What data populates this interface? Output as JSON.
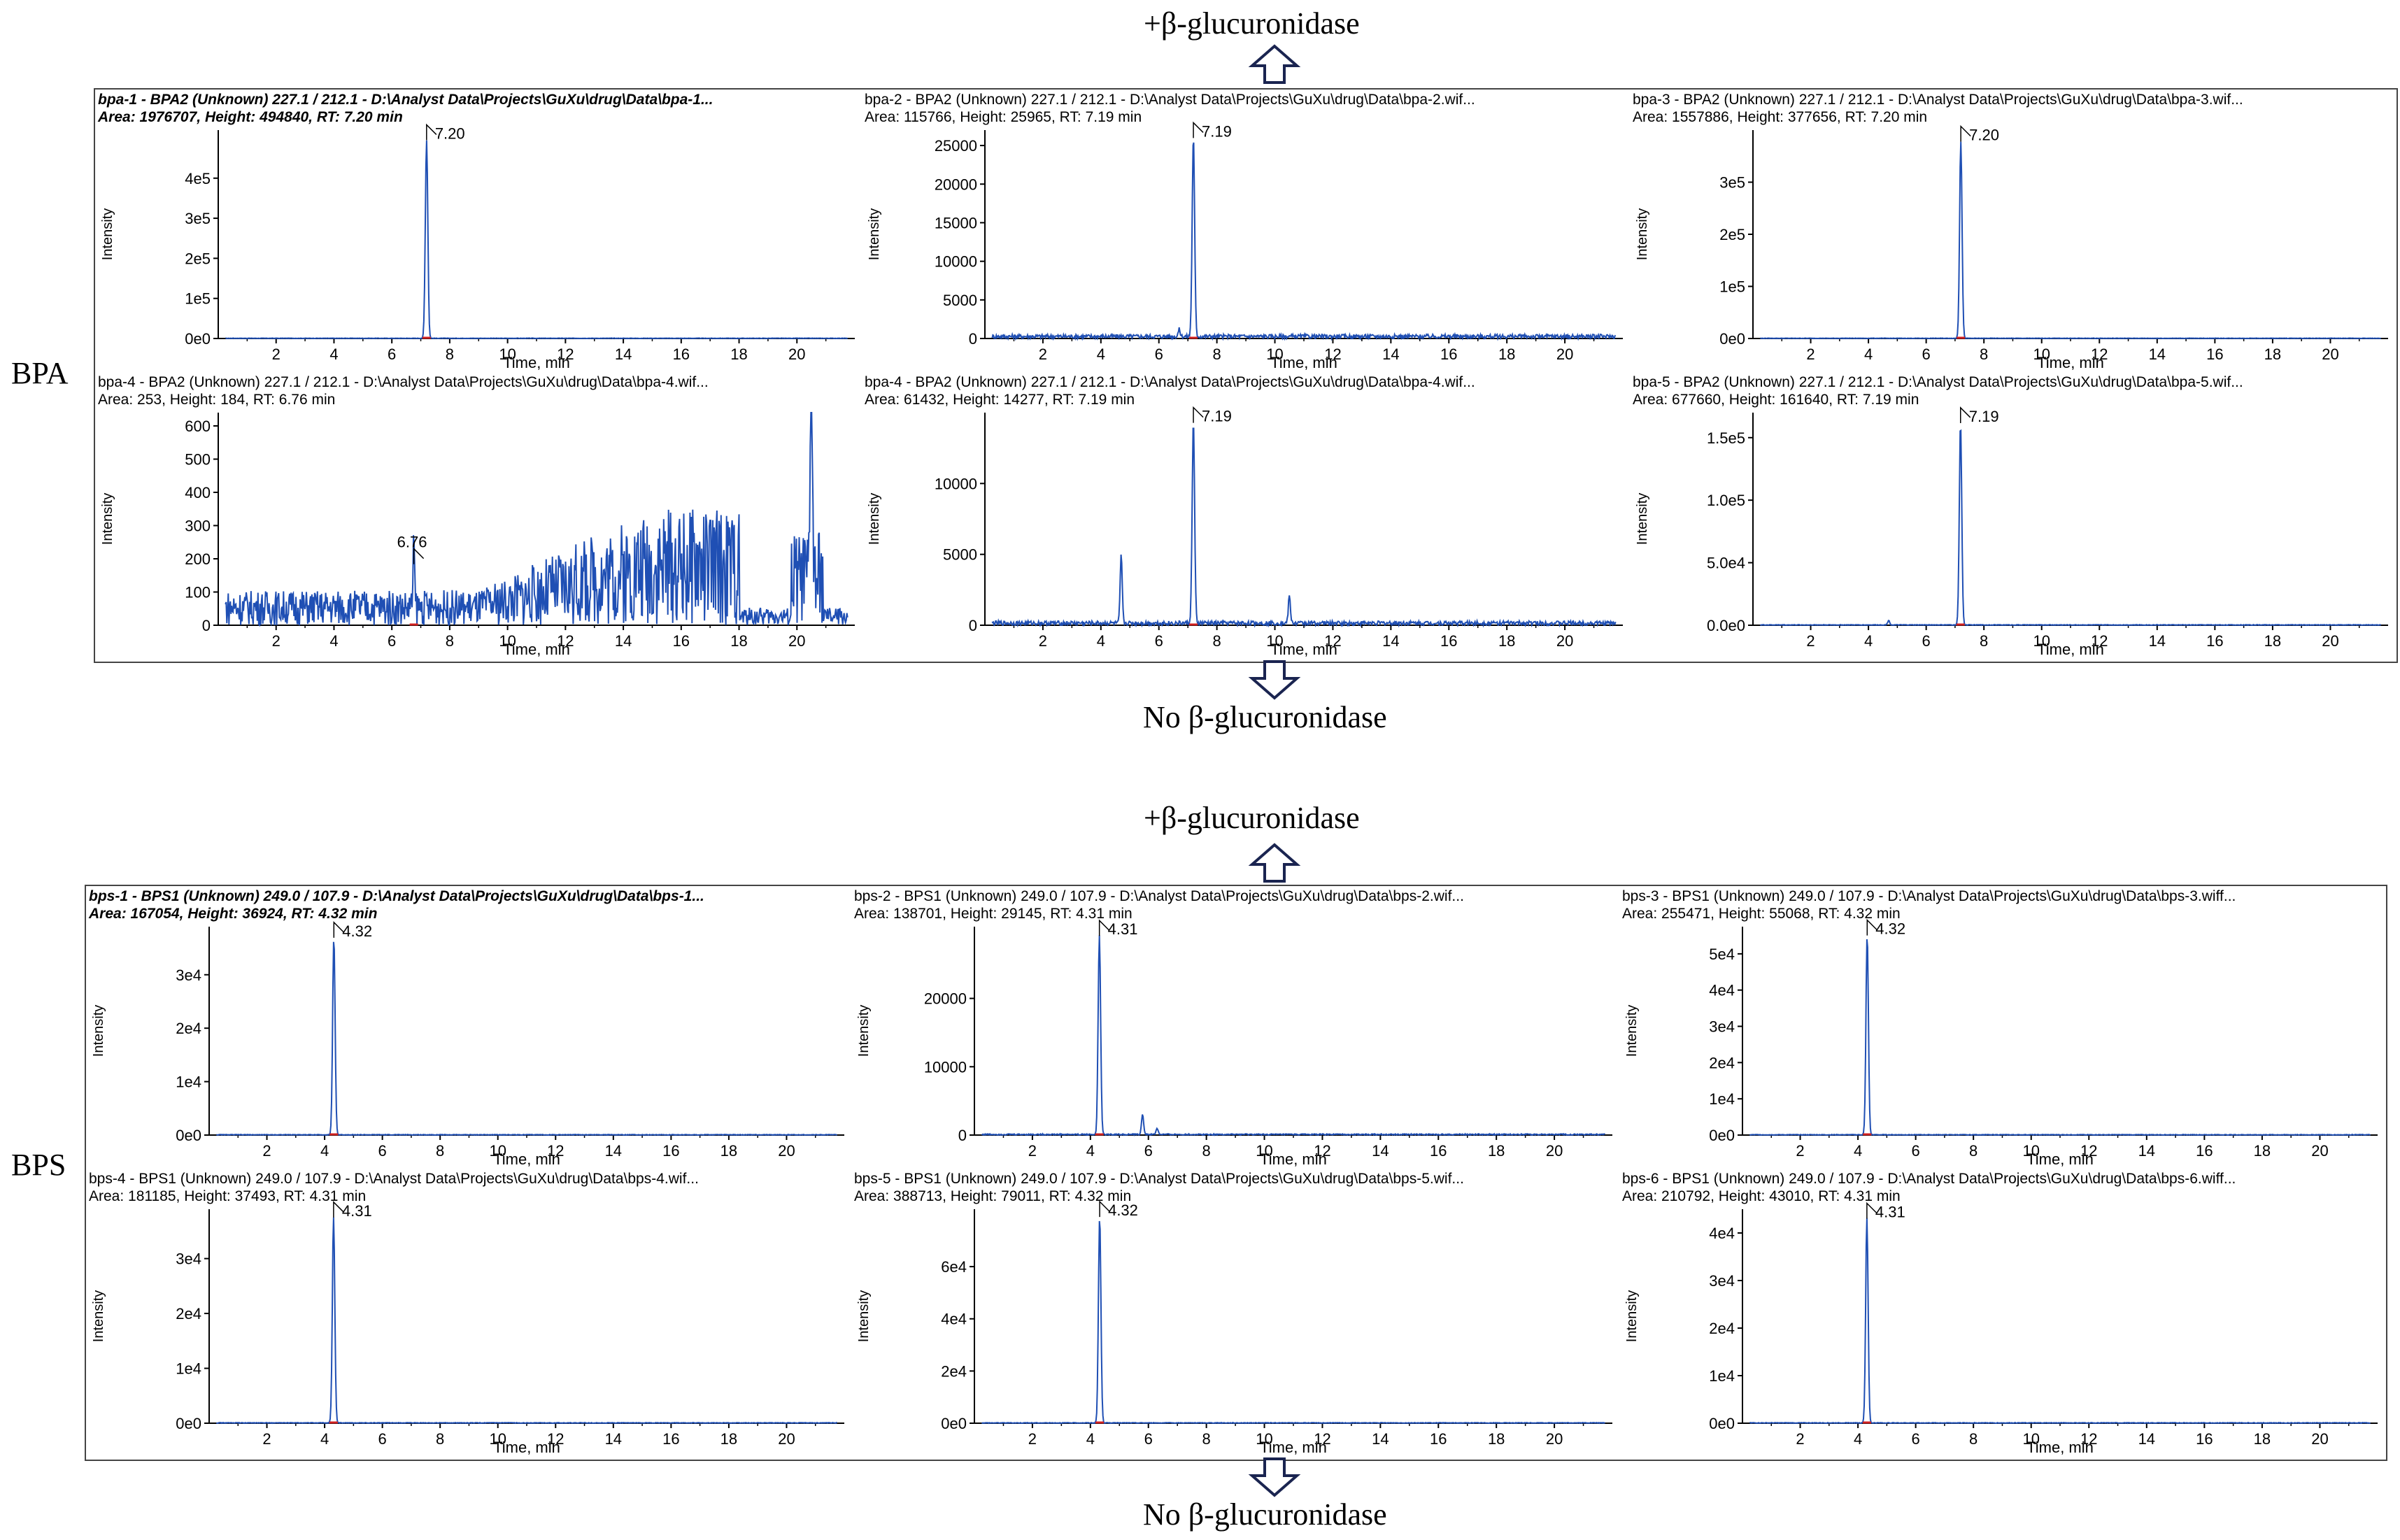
{
  "labels": {
    "plus_enzyme_top": "+β-glucuronidase",
    "no_enzyme_top": "No β-glucuronidase",
    "plus_enzyme_bottom": "+β-glucuronidase",
    "no_enzyme_bottom": "No β-glucuronidase",
    "bpa": "BPA",
    "bps": "BPS"
  },
  "colors": {
    "trace": "#1f4fb4",
    "axis": "#000000",
    "baseline_mark": "#d02020"
  },
  "chart_data": [
    {
      "type": "line",
      "group": "BPA",
      "title1": "bpa-1 - BPA2 (Unknown) 227.1 / 212.1 - D:\\Analyst Data\\Projects\\GuXu\\drug\\Data\\bpa-1...",
      "title2": "Area: 1976707, Height: 494840, RT: 7.20 min",
      "bold": true,
      "xlabel": "Time, min",
      "ylabel": "Intensity",
      "xlim": [
        0,
        22
      ],
      "ylim": [
        0,
        520000
      ],
      "xticks": [
        "2",
        "4",
        "6",
        "8",
        "10",
        "12",
        "14",
        "16",
        "18",
        "20"
      ],
      "yticks": [
        {
          "v": 0,
          "t": "0e0"
        },
        {
          "v": 100000,
          "t": "1e5"
        },
        {
          "v": 200000,
          "t": "2e5"
        },
        {
          "v": 300000,
          "t": "3e5"
        },
        {
          "v": 400000,
          "t": "4e5"
        }
      ],
      "peaks": [
        {
          "x": 7.2,
          "y": 494840,
          "w": 0.06
        }
      ],
      "noise": 0.002,
      "rt_label": "7.20",
      "rt_x": 7.2
    },
    {
      "type": "line",
      "group": "BPA",
      "title1": "bpa-2 - BPA2 (Unknown) 227.1 / 212.1 - D:\\Analyst Data\\Projects\\GuXu\\drug\\Data\\bpa-2.wif...",
      "title2": "Area: 115766, Height: 25965, RT: 7.19 min",
      "bold": false,
      "xlabel": "Time, min",
      "ylabel": "Intensity",
      "xlim": [
        0,
        22
      ],
      "ylim": [
        0,
        27000
      ],
      "xticks": [
        "2",
        "4",
        "6",
        "8",
        "10",
        "12",
        "14",
        "16",
        "18",
        "20"
      ],
      "yticks": [
        {
          "v": 0,
          "t": "0"
        },
        {
          "v": 5000,
          "t": "5000"
        },
        {
          "v": 10000,
          "t": "10000"
        },
        {
          "v": 15000,
          "t": "15000"
        },
        {
          "v": 20000,
          "t": "20000"
        },
        {
          "v": 25000,
          "t": "25000"
        }
      ],
      "peaks": [
        {
          "x": 7.19,
          "y": 25965,
          "w": 0.06
        },
        {
          "x": 6.7,
          "y": 900,
          "w": 0.05
        }
      ],
      "noise": 0.02,
      "rt_label": "7.19",
      "rt_x": 7.19
    },
    {
      "type": "line",
      "group": "BPA",
      "title1": "bpa-3 - BPA2 (Unknown) 227.1 / 212.1 - D:\\Analyst Data\\Projects\\GuXu\\drug\\Data\\bpa-3.wif...",
      "title2": "Area: 1557886, Height: 377656, RT: 7.20 min",
      "bold": false,
      "xlabel": "Time, min",
      "ylabel": "Intensity",
      "xlim": [
        0,
        22
      ],
      "ylim": [
        0,
        400000
      ],
      "xticks": [
        "2",
        "4",
        "6",
        "8",
        "10",
        "12",
        "14",
        "16",
        "18",
        "20"
      ],
      "yticks": [
        {
          "v": 0,
          "t": "0e0"
        },
        {
          "v": 100000,
          "t": "1e5"
        },
        {
          "v": 200000,
          "t": "2e5"
        },
        {
          "v": 300000,
          "t": "3e5"
        }
      ],
      "peaks": [
        {
          "x": 7.2,
          "y": 377656,
          "w": 0.06
        }
      ],
      "noise": 0.002,
      "rt_label": "7.20",
      "rt_x": 7.2
    },
    {
      "type": "line",
      "group": "BPA",
      "title1": "bpa-4 - BPA2 (Unknown) 227.1 / 212.1 - D:\\Analyst Data\\Projects\\GuXu\\drug\\Data\\bpa-4.wif...",
      "title2": "Area: 253, Height: 184, RT: 6.76 min",
      "bold": false,
      "xlabel": "Time, min",
      "ylabel": "Intensity",
      "xlim": [
        0,
        22
      ],
      "ylim": [
        0,
        640
      ],
      "xticks": [
        "2",
        "4",
        "6",
        "8",
        "10",
        "12",
        "14",
        "16",
        "18",
        "20"
      ],
      "yticks": [
        {
          "v": 0,
          "t": "0"
        },
        {
          "v": 100,
          "t": "100"
        },
        {
          "v": 200,
          "t": "200"
        },
        {
          "v": 300,
          "t": "300"
        },
        {
          "v": 400,
          "t": "400"
        },
        {
          "v": 500,
          "t": "500"
        },
        {
          "v": 600,
          "t": "600"
        }
      ],
      "peaks": [
        {
          "x": 20.5,
          "y": 620,
          "w": 0.05
        },
        {
          "x": 6.76,
          "y": 184,
          "w": 0.04
        }
      ],
      "noise": 0.55,
      "noise_ramp": true,
      "rt_label": "6.76",
      "rt_x": 6.76
    },
    {
      "type": "line",
      "group": "BPA",
      "title1": "bpa-4 - BPA2 (Unknown) 227.1 / 212.1 - D:\\Analyst Data\\Projects\\GuXu\\drug\\Data\\bpa-4.wif...",
      "title2": "Area: 61432, Height: 14277, RT: 7.19 min",
      "bold": false,
      "xlabel": "Time, min",
      "ylabel": "Intensity",
      "xlim": [
        0,
        22
      ],
      "ylim": [
        0,
        15000
      ],
      "xticks": [
        "2",
        "4",
        "6",
        "8",
        "10",
        "12",
        "14",
        "16",
        "18",
        "20"
      ],
      "yticks": [
        {
          "v": 0,
          "t": "0"
        },
        {
          "v": 5000,
          "t": "5000"
        },
        {
          "v": 10000,
          "t": "10000"
        }
      ],
      "peaks": [
        {
          "x": 7.19,
          "y": 14277,
          "w": 0.06
        },
        {
          "x": 4.7,
          "y": 4800,
          "w": 0.05
        },
        {
          "x": 10.5,
          "y": 1900,
          "w": 0.05
        }
      ],
      "noise": 0.02,
      "rt_label": "7.19",
      "rt_x": 7.19
    },
    {
      "type": "line",
      "group": "BPA",
      "title1": "bpa-5 - BPA2 (Unknown) 227.1 / 212.1 - D:\\Analyst Data\\Projects\\GuXu\\drug\\Data\\bpa-5.wif...",
      "title2": "Area: 677660, Height: 161640, RT: 7.19 min",
      "bold": false,
      "xlabel": "Time, min",
      "ylabel": "Intensity",
      "xlim": [
        0,
        22
      ],
      "ylim": [
        0,
        170000
      ],
      "xticks": [
        "2",
        "4",
        "6",
        "8",
        "10",
        "12",
        "14",
        "16",
        "18",
        "20"
      ],
      "yticks": [
        {
          "v": 0,
          "t": "0.0e0"
        },
        {
          "v": 50000,
          "t": "5.0e4"
        },
        {
          "v": 100000,
          "t": "1.0e5"
        },
        {
          "v": 150000,
          "t": "1.5e5"
        }
      ],
      "peaks": [
        {
          "x": 7.19,
          "y": 161640,
          "w": 0.06
        },
        {
          "x": 4.7,
          "y": 3500,
          "w": 0.05
        }
      ],
      "noise": 0.003,
      "rt_label": "7.19",
      "rt_x": 7.19
    },
    {
      "type": "line",
      "group": "BPS",
      "title1": "bps-1 - BPS1 (Unknown) 249.0 / 107.9 - D:\\Analyst Data\\Projects\\GuXu\\drug\\Data\\bps-1...",
      "title2": "Area: 167054, Height: 36924, RT: 4.32 min",
      "bold": true,
      "xlabel": "Time, min",
      "ylabel": "Intensity",
      "xlim": [
        0,
        22
      ],
      "ylim": [
        0,
        39000
      ],
      "xticks": [
        "2",
        "4",
        "6",
        "8",
        "10",
        "12",
        "14",
        "16",
        "18",
        "20"
      ],
      "yticks": [
        {
          "v": 0,
          "t": "0e0"
        },
        {
          "v": 10000,
          "t": "1e4"
        },
        {
          "v": 20000,
          "t": "2e4"
        },
        {
          "v": 30000,
          "t": "3e4"
        }
      ],
      "peaks": [
        {
          "x": 4.32,
          "y": 36924,
          "w": 0.06
        }
      ],
      "noise": 0.003,
      "rt_label": "4.32",
      "rt_x": 4.32
    },
    {
      "type": "line",
      "group": "BPS",
      "title1": "bps-2 - BPS1 (Unknown) 249.0 / 107.9 - D:\\Analyst Data\\Projects\\GuXu\\drug\\Data\\bps-2.wif...",
      "title2": "Area: 138701, Height: 29145, RT: 4.31 min",
      "bold": false,
      "xlabel": "Time, min",
      "ylabel": "Intensity",
      "xlim": [
        0,
        22
      ],
      "ylim": [
        0,
        30500
      ],
      "xticks": [
        "2",
        "4",
        "6",
        "8",
        "10",
        "12",
        "14",
        "16",
        "18",
        "20"
      ],
      "yticks": [
        {
          "v": 0,
          "t": "0"
        },
        {
          "v": 10000,
          "t": "10000"
        },
        {
          "v": 20000,
          "t": "20000"
        }
      ],
      "peaks": [
        {
          "x": 4.31,
          "y": 29145,
          "w": 0.06
        },
        {
          "x": 5.8,
          "y": 3000,
          "w": 0.05
        },
        {
          "x": 6.3,
          "y": 900,
          "w": 0.05
        }
      ],
      "noise": 0.006,
      "rt_label": "4.31",
      "rt_x": 4.31
    },
    {
      "type": "line",
      "group": "BPS",
      "title1": "bps-3 - BPS1 (Unknown) 249.0 / 107.9 - D:\\Analyst Data\\Projects\\GuXu\\drug\\Data\\bps-3.wiff...",
      "title2": "Area: 255471, Height: 55068, RT: 4.32 min",
      "bold": false,
      "xlabel": "Time, min",
      "ylabel": "Intensity",
      "xlim": [
        0,
        22
      ],
      "ylim": [
        0,
        57500
      ],
      "xticks": [
        "2",
        "4",
        "6",
        "8",
        "10",
        "12",
        "14",
        "16",
        "18",
        "20"
      ],
      "yticks": [
        {
          "v": 0,
          "t": "0e0"
        },
        {
          "v": 10000,
          "t": "1e4"
        },
        {
          "v": 20000,
          "t": "2e4"
        },
        {
          "v": 30000,
          "t": "3e4"
        },
        {
          "v": 40000,
          "t": "4e4"
        },
        {
          "v": 50000,
          "t": "5e4"
        }
      ],
      "peaks": [
        {
          "x": 4.32,
          "y": 55068,
          "w": 0.06
        }
      ],
      "noise": 0.003,
      "rt_label": "4.32",
      "rt_x": 4.32
    },
    {
      "type": "line",
      "group": "BPS",
      "title1": "bps-4 - BPS1 (Unknown) 249.0 / 107.9 - D:\\Analyst Data\\Projects\\GuXu\\drug\\Data\\bps-4.wif...",
      "title2": "Area: 181185, Height: 37493, RT: 4.31 min",
      "bold": false,
      "xlabel": "Time, min",
      "ylabel": "Intensity",
      "xlim": [
        0,
        22
      ],
      "ylim": [
        0,
        39000
      ],
      "xticks": [
        "2",
        "4",
        "6",
        "8",
        "10",
        "12",
        "14",
        "16",
        "18",
        "20"
      ],
      "yticks": [
        {
          "v": 0,
          "t": "0e0"
        },
        {
          "v": 10000,
          "t": "1e4"
        },
        {
          "v": 20000,
          "t": "2e4"
        },
        {
          "v": 30000,
          "t": "3e4"
        }
      ],
      "peaks": [
        {
          "x": 4.31,
          "y": 37493,
          "w": 0.06
        }
      ],
      "noise": 0.003,
      "rt_label": "4.31",
      "rt_x": 4.31
    },
    {
      "type": "line",
      "group": "BPS",
      "title1": "bps-5 - BPS1 (Unknown) 249.0 / 107.9 - D:\\Analyst Data\\Projects\\GuXu\\drug\\Data\\bps-5.wif...",
      "title2": "Area: 388713, Height: 79011, RT: 4.32 min",
      "bold": false,
      "xlabel": "Time, min",
      "ylabel": "Intensity",
      "xlim": [
        0,
        22
      ],
      "ylim": [
        0,
        82000
      ],
      "xticks": [
        "2",
        "4",
        "6",
        "8",
        "10",
        "12",
        "14",
        "16",
        "18",
        "20"
      ],
      "yticks": [
        {
          "v": 0,
          "t": "0e0"
        },
        {
          "v": 20000,
          "t": "2e4"
        },
        {
          "v": 40000,
          "t": "4e4"
        },
        {
          "v": 60000,
          "t": "6e4"
        }
      ],
      "peaks": [
        {
          "x": 4.32,
          "y": 79011,
          "w": 0.06
        }
      ],
      "noise": 0.003,
      "rt_label": "4.32",
      "rt_x": 4.32
    },
    {
      "type": "line",
      "group": "BPS",
      "title1": "bps-6 - BPS1 (Unknown) 249.0 / 107.9 - D:\\Analyst Data\\Projects\\GuXu\\drug\\Data\\bps-6.wiff...",
      "title2": "Area: 210792, Height: 43010, RT: 4.31 min",
      "bold": false,
      "xlabel": "Time, min",
      "ylabel": "Intensity",
      "xlim": [
        0,
        22
      ],
      "ylim": [
        0,
        45000
      ],
      "xticks": [
        "2",
        "4",
        "6",
        "8",
        "10",
        "12",
        "14",
        "16",
        "18",
        "20"
      ],
      "yticks": [
        {
          "v": 0,
          "t": "0e0"
        },
        {
          "v": 10000,
          "t": "1e4"
        },
        {
          "v": 20000,
          "t": "2e4"
        },
        {
          "v": 30000,
          "t": "3e4"
        },
        {
          "v": 40000,
          "t": "4e4"
        }
      ],
      "peaks": [
        {
          "x": 4.31,
          "y": 43010,
          "w": 0.06
        }
      ],
      "noise": 0.003,
      "rt_label": "4.31",
      "rt_x": 4.31
    }
  ]
}
